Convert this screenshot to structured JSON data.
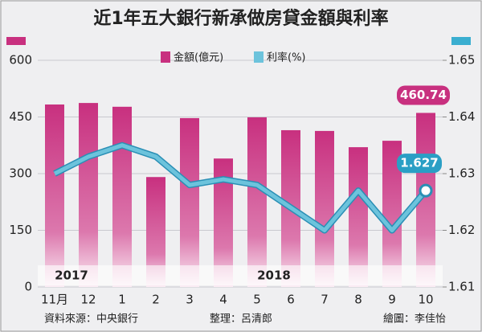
{
  "chart_data": {
    "type": "bar-line",
    "title": "近1年五大銀行新承做房貸金額與利率",
    "categories": [
      "11月",
      "12",
      "1",
      "2",
      "3",
      "4",
      "5",
      "6",
      "7",
      "8",
      "9",
      "10"
    ],
    "series": [
      {
        "name": "金額(億元)",
        "type": "bar",
        "color": "#c8307f",
        "axis": "y",
        "values": [
          483,
          487,
          477,
          291,
          447,
          340,
          449,
          415,
          413,
          370,
          387,
          460.74
        ]
      },
      {
        "name": "利率(%)",
        "type": "line",
        "color": "#6cc3dc",
        "axis": "y2",
        "values": [
          1.63,
          1.633,
          1.635,
          1.633,
          1.628,
          1.629,
          1.628,
          1.624,
          1.62,
          1.627,
          1.62,
          1.627
        ]
      }
    ],
    "ylim": [
      0,
      600
    ],
    "yticks": [
      0,
      150,
      300,
      450,
      600
    ],
    "y2lim": [
      1.61,
      1.65
    ],
    "y2ticks": [
      1.61,
      1.62,
      1.63,
      1.64,
      1.65
    ],
    "label_last": true,
    "periods": [
      {
        "label": "2017",
        "from": "11月",
        "to": "12"
      },
      {
        "label": "2018",
        "from": "1",
        "to": "10"
      }
    ],
    "credits": [
      "資料來源：中央銀行",
      "整理：呂清郎",
      "繪圖：李佳怡"
    ]
  }
}
